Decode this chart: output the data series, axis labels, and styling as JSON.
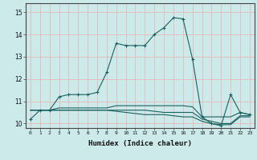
{
  "xlabel": "Humidex (Indice chaleur)",
  "bg_color": "#cceaea",
  "grid_color": "#e8b8b8",
  "line_color": "#1a6060",
  "xmin": -0.5,
  "xmax": 23.5,
  "ymin": 9.8,
  "ymax": 15.4,
  "yticks": [
    10,
    11,
    12,
    13,
    14,
    15
  ],
  "xticks": [
    0,
    1,
    2,
    3,
    4,
    5,
    6,
    7,
    8,
    9,
    10,
    11,
    12,
    13,
    14,
    15,
    16,
    17,
    18,
    19,
    20,
    21,
    22,
    23
  ],
  "series": [
    [
      10.2,
      10.6,
      10.6,
      11.2,
      11.3,
      11.3,
      11.3,
      11.4,
      12.3,
      13.6,
      13.5,
      13.5,
      13.5,
      14.0,
      14.3,
      14.75,
      14.7,
      12.9,
      10.3,
      10.0,
      9.9,
      11.3,
      10.5,
      10.4
    ],
    [
      10.6,
      10.6,
      10.6,
      10.7,
      10.7,
      10.7,
      10.7,
      10.7,
      10.7,
      10.8,
      10.8,
      10.8,
      10.8,
      10.8,
      10.8,
      10.8,
      10.8,
      10.75,
      10.3,
      10.3,
      10.3,
      10.3,
      10.5,
      10.4
    ],
    [
      10.6,
      10.6,
      10.6,
      10.6,
      10.6,
      10.6,
      10.6,
      10.6,
      10.6,
      10.6,
      10.6,
      10.6,
      10.6,
      10.55,
      10.5,
      10.5,
      10.5,
      10.5,
      10.2,
      10.1,
      10.0,
      10.0,
      10.35,
      10.35
    ],
    [
      10.6,
      10.6,
      10.6,
      10.6,
      10.6,
      10.6,
      10.6,
      10.6,
      10.6,
      10.55,
      10.5,
      10.45,
      10.4,
      10.4,
      10.4,
      10.35,
      10.3,
      10.3,
      10.1,
      10.0,
      9.95,
      9.95,
      10.3,
      10.3
    ]
  ]
}
